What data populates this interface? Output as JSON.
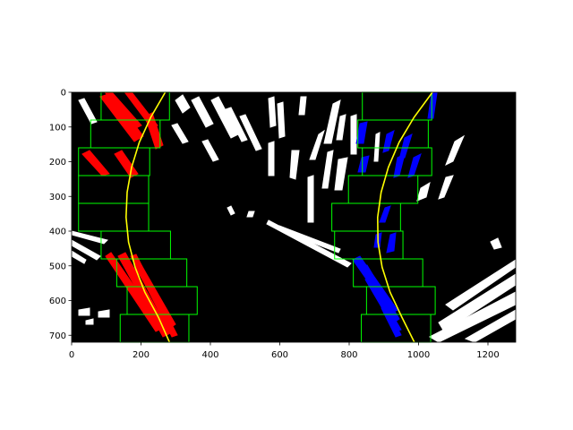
{
  "figure": {
    "title": "",
    "background": "#ffffff"
  },
  "chart_data": {
    "type": "heatmap",
    "title": "",
    "xlabel": "",
    "ylabel": "",
    "xlim": [
      0,
      1280
    ],
    "ylim": [
      720,
      0
    ],
    "y_inverted": true,
    "grid": false,
    "x_ticks": [
      0,
      200,
      400,
      600,
      800,
      1000,
      1200
    ],
    "y_ticks": [
      0,
      100,
      200,
      300,
      400,
      500,
      600,
      700
    ],
    "image_background": "#000000",
    "colors": {
      "left_lane_pixels": "#ff0000",
      "right_lane_pixels": "#0000ff",
      "window": "#00ff00",
      "fit": "#ffff00",
      "edges": "#ffffff"
    },
    "left_windows": [
      {
        "x": [
          85,
          282
        ],
        "y": [
          0,
          80
        ]
      },
      {
        "x": [
          55,
          255
        ],
        "y": [
          80,
          160
        ]
      },
      {
        "x": [
          20,
          225
        ],
        "y": [
          160,
          240
        ]
      },
      {
        "x": [
          20,
          222
        ],
        "y": [
          240,
          320
        ]
      },
      {
        "x": [
          20,
          222
        ],
        "y": [
          320,
          400
        ]
      },
      {
        "x": [
          85,
          285
        ],
        "y": [
          400,
          480
        ]
      },
      {
        "x": [
          130,
          332
        ],
        "y": [
          480,
          560
        ]
      },
      {
        "x": [
          160,
          362
        ],
        "y": [
          560,
          640
        ]
      },
      {
        "x": [
          140,
          338
        ],
        "y": [
          640,
          720
        ]
      }
    ],
    "right_windows": [
      {
        "x": [
          838,
          1038
        ],
        "y": [
          0,
          80
        ]
      },
      {
        "x": [
          825,
          1028
        ],
        "y": [
          80,
          160
        ]
      },
      {
        "x": [
          838,
          1038
        ],
        "y": [
          160,
          240
        ]
      },
      {
        "x": [
          798,
          998
        ],
        "y": [
          240,
          320
        ]
      },
      {
        "x": [
          750,
          948
        ],
        "y": [
          320,
          400
        ]
      },
      {
        "x": [
          758,
          955
        ],
        "y": [
          400,
          480
        ]
      },
      {
        "x": [
          812,
          1012
        ],
        "y": [
          480,
          560
        ]
      },
      {
        "x": [
          850,
          1048
        ],
        "y": [
          560,
          640
        ]
      },
      {
        "x": [
          835,
          1035
        ],
        "y": [
          640,
          720
        ]
      }
    ],
    "series": [
      {
        "x": [
          270,
          228,
          195,
          173,
          160,
          157,
          164,
          183,
          211,
          250,
          282
        ],
        "y": [
          0,
          72,
          144,
          216,
          288,
          360,
          432,
          504,
          576,
          648,
          720
        ]
      },
      {
        "x": [
          1040,
          987,
          944,
          913,
          892,
          882,
          883,
          895,
          918,
          952,
          988
        ],
        "y": [
          0,
          72,
          144,
          216,
          288,
          360,
          432,
          504,
          576,
          648,
          720
        ]
      }
    ]
  }
}
